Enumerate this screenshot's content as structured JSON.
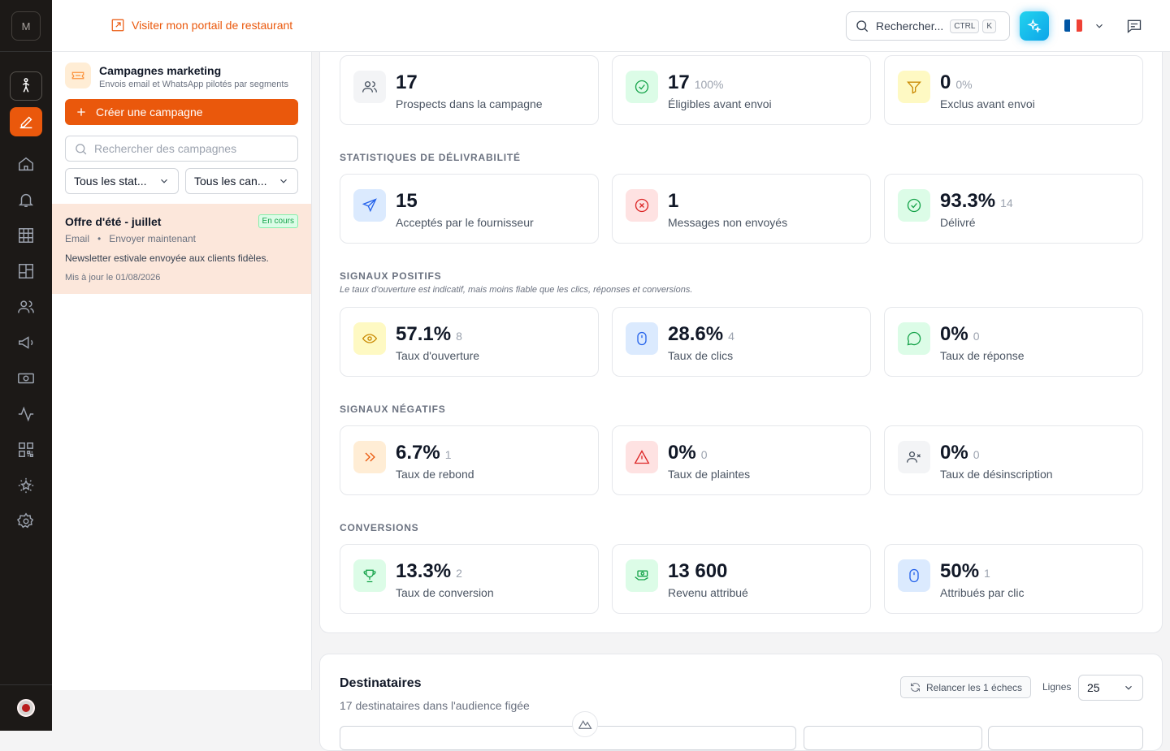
{
  "rail": {
    "logo": "M"
  },
  "topbar": {
    "portal_link": "Visiter mon portail de restaurant",
    "search_label": "Rechercher...",
    "kbd_ctrl": "CTRL",
    "kbd_k": "K",
    "flag_colors": [
      "#0055a4",
      "#ffffff",
      "#ef4135"
    ]
  },
  "sidebar": {
    "title": "Campagnes marketing",
    "subtitle": "Envois email et WhatsApp pilotés par segments",
    "create_label": "Créer une campagne",
    "search_placeholder": "Rechercher des campagnes",
    "filter_status": "Tous les stat...",
    "filter_channel": "Tous les can...",
    "campaign": {
      "title": "Offre d'été - juillet",
      "status": "En cours",
      "channel": "Email",
      "schedule": "Envoyer maintenant",
      "description": "Newsletter estivale envoyée aux clients fidèles.",
      "updated": "Mis à jour le 01/08/2026"
    }
  },
  "stats": {
    "top": [
      {
        "value": "17",
        "sub": "",
        "label": "Prospects dans la campagne",
        "icon": "users-icon"
      },
      {
        "value": "17",
        "sub": "100%",
        "label": "Éligibles avant envoi",
        "icon": "check-circle-icon"
      },
      {
        "value": "0",
        "sub": "0%",
        "label": "Exclus avant envoi",
        "icon": "funnel-icon"
      }
    ],
    "deliverability": {
      "title": "STATISTIQUES DE DÉLIVRABILITÉ",
      "cards": [
        {
          "value": "15",
          "sub": "",
          "label": "Acceptés par le fournisseur",
          "icon": "send-icon"
        },
        {
          "value": "1",
          "sub": "",
          "label": "Messages non envoyés",
          "icon": "x-circle-icon"
        },
        {
          "value": "93.3%",
          "sub": "14",
          "label": "Délivré",
          "icon": "check-circle-icon"
        }
      ]
    },
    "positive": {
      "title": "SIGNAUX POSITIFS",
      "note": "Le taux d'ouverture est indicatif, mais moins fiable que les clics, réponses et conversions.",
      "cards": [
        {
          "value": "57.1%",
          "sub": "8",
          "label": "Taux d'ouverture",
          "icon": "eye-icon"
        },
        {
          "value": "28.6%",
          "sub": "4",
          "label": "Taux de clics",
          "icon": "mouse-icon"
        },
        {
          "value": "0%",
          "sub": "0",
          "label": "Taux de réponse",
          "icon": "chat-dots-icon"
        }
      ]
    },
    "negative": {
      "title": "SIGNAUX NÉGATIFS",
      "cards": [
        {
          "value": "6.7%",
          "sub": "1",
          "label": "Taux de rebond",
          "icon": "chevrons-right-icon"
        },
        {
          "value": "0%",
          "sub": "0",
          "label": "Taux de plaintes",
          "icon": "warning-icon"
        },
        {
          "value": "0%",
          "sub": "0",
          "label": "Taux de désinscription",
          "icon": "user-x-icon"
        }
      ]
    },
    "conversions": {
      "title": "CONVERSIONS",
      "cards": [
        {
          "value": "13.3%",
          "sub": "2",
          "label": "Taux de conversion",
          "icon": "trophy-icon"
        },
        {
          "value": "13 600",
          "sub": "",
          "label": "Revenu attribué",
          "icon": "money-hand-icon"
        },
        {
          "value": "50%",
          "sub": "1",
          "label": "Attribués par clic",
          "icon": "mouse-icon"
        }
      ]
    }
  },
  "recipients": {
    "title": "Destinataires",
    "subtitle": "17 destinataires dans l'audience figée",
    "retry_label": "Relancer les 1 échecs",
    "rows_label": "Lignes",
    "rows_value": "25"
  }
}
